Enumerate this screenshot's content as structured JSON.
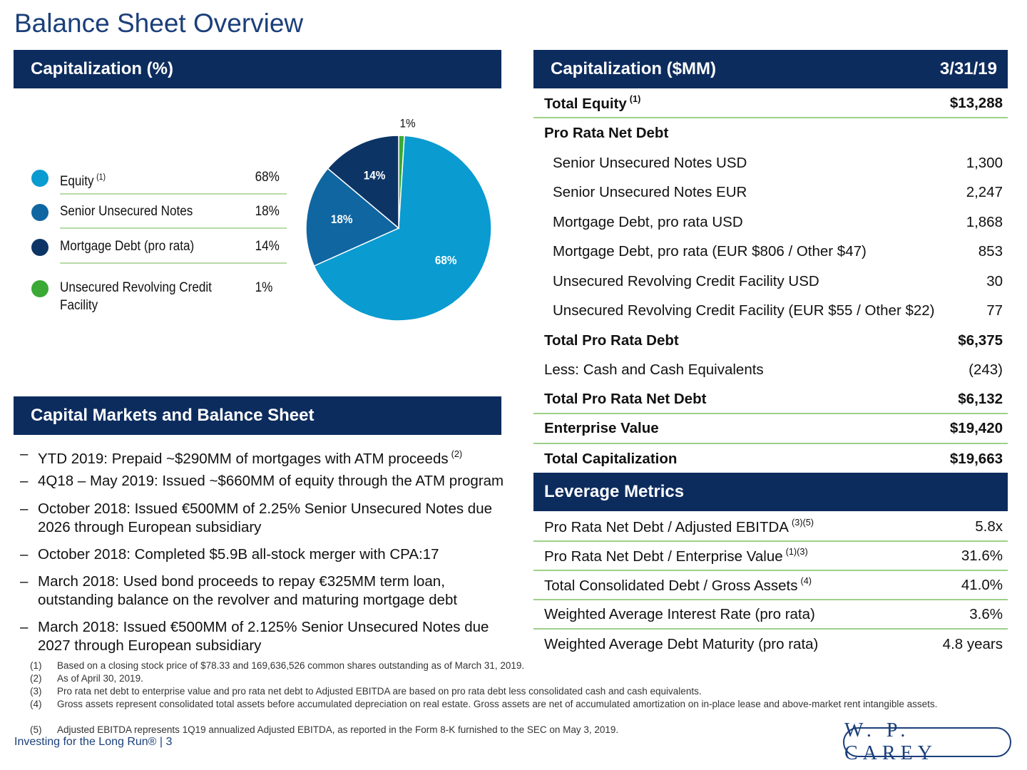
{
  "header": {
    "title": "Balance Sheet Overview"
  },
  "capitalization_pct": {
    "title": "Capitalization (%)"
  },
  "chart_data": {
    "type": "pie",
    "categories": [
      "Equity",
      "Senior Unsecured Notes",
      "Mortgage Debt (pro rata)",
      "Unsecured Revolving Credit Facility"
    ],
    "category_notes": [
      "(1)",
      null,
      null,
      null
    ],
    "values": [
      68,
      18,
      14,
      1
    ],
    "value_labels": [
      "68%",
      "18%",
      "14%",
      "1%"
    ],
    "colors": [
      "#0a9bd0",
      "#0f66a1",
      "#0c3566",
      "#3aa935"
    ],
    "legend": "left"
  },
  "capital_markets": {
    "title": "Capital Markets and Balance Sheet",
    "bullets": [
      {
        "dash": "–",
        "text": "YTD 2019: Prepaid ~$290MM of mortgages with ATM proceeds",
        "note": "(2)"
      },
      {
        "dash": "–",
        "text": "4Q18 – May 2019: Issued ~$660MM of equity through the ATM program",
        "note": null
      },
      {
        "dash": "–",
        "text": "October 2018: Issued €500MM of 2.25% Senior Unsecured Notes due 2026 through European subsidiary",
        "note": null
      },
      {
        "dash": "–",
        "text": "October 2018: Completed $5.9B all-stock merger with CPA:17",
        "note": null
      },
      {
        "dash": "–",
        "text": "March 2018: Used bond proceeds to repay €325MM term loan, outstanding balance on the revolver and maturing mortgage debt",
        "note": null
      },
      {
        "dash": "–",
        "text": "March 2018: Issued €500MM of 2.125% Senior Unsecured Notes due 2027 through European subsidiary",
        "note": null
      }
    ]
  },
  "capitalization_mm": {
    "title": "Capitalization ($MM)",
    "date": "3/31/19",
    "rows": [
      {
        "label": "Total Equity",
        "note": "(1)",
        "value": "$13,288",
        "style": "bold"
      },
      {
        "label": "Pro Rata Net Debt",
        "note": null,
        "value": null,
        "style": "bold"
      },
      {
        "label": "Senior Unsecured Notes USD",
        "note": null,
        "value": "1,300",
        "style": "indent"
      },
      {
        "label": "Senior Unsecured Notes EUR",
        "note": null,
        "value": "2,247",
        "style": "indent"
      },
      {
        "label": "Mortgage Debt, pro rata USD",
        "note": null,
        "value": "1,868",
        "style": "indent"
      },
      {
        "label": "Mortgage Debt, pro rata (EUR $806 / Other $47)",
        "note": null,
        "value": "853",
        "style": "indent"
      },
      {
        "label": "Unsecured Revolving Credit Facility USD",
        "note": null,
        "value": "30",
        "style": "indent"
      },
      {
        "label": "Unsecured Revolving Credit Facility (EUR $55 / Other $22)",
        "note": null,
        "value": "77",
        "style": "indent"
      },
      {
        "label": "Total Pro Rata Debt",
        "note": null,
        "value": "$6,375",
        "style": "bold"
      },
      {
        "label": "Less: Cash and Cash Equivalents",
        "note": null,
        "value": "(243)",
        "style": "plain"
      },
      {
        "label": "Total Pro Rata Net Debt",
        "note": null,
        "value": "$6,132",
        "style": "bold"
      },
      {
        "label": "Enterprise Value",
        "note": null,
        "value": "$19,420",
        "style": "bold"
      },
      {
        "label": "Total Capitalization",
        "note": null,
        "value": "$19,663",
        "style": "bold"
      }
    ]
  },
  "leverage": {
    "title": "Leverage Metrics",
    "rows": [
      {
        "label": "Pro Rata Net Debt / Adjusted EBITDA",
        "note": "(3)(5)",
        "value": "5.8x"
      },
      {
        "label": "Pro Rata Net Debt / Enterprise Value",
        "note": "(1)(3)",
        "value": "31.6%"
      },
      {
        "label": "Total Consolidated Debt / Gross Assets",
        "note": "(4)",
        "value": "41.0%"
      },
      {
        "label": "Weighted Average Interest Rate (pro rata)",
        "note": null,
        "value": "3.6%"
      },
      {
        "label": "Weighted Average Debt Maturity (pro rata)",
        "note": null,
        "value": "4.8 years"
      }
    ]
  },
  "footnotes": [
    {
      "num": "(1)",
      "text": "Based on a closing stock price of $78.33 and 169,636,526 common shares outstanding as of March 31, 2019."
    },
    {
      "num": "(2)",
      "text": "As of April 30, 2019."
    },
    {
      "num": "(3)",
      "text": "Pro rata net debt to enterprise value and pro rata net debt to Adjusted EBITDA are based on pro rata debt less consolidated cash and cash equivalents."
    },
    {
      "num": "(4)",
      "text": "Gross assets represent consolidated total assets before accumulated depreciation on real estate. Gross assets are net of accumulated amortization on in-place lease and above-market rent intangible assets."
    },
    {
      "num": "(5)",
      "text": "Adjusted EBITDA represents 1Q19 annualized Adjusted EBITDA, as reported in the Form 8-K furnished to the SEC on May 3, 2019."
    }
  ],
  "footer": {
    "tagline": "Investing for the Long Run® | 3",
    "logo": "W. P. CAREY"
  }
}
